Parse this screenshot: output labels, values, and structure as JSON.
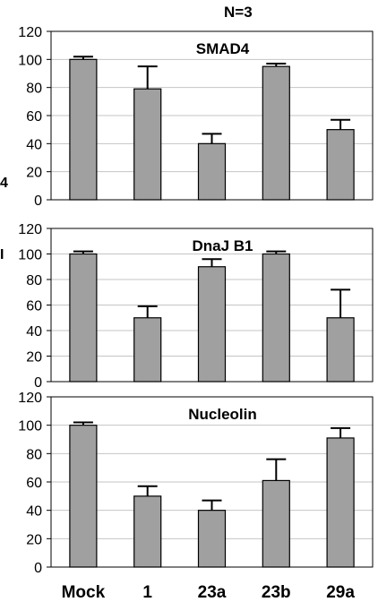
{
  "supertitle": "N=3",
  "left_edge_fragments": [
    "4",
    "I"
  ],
  "chart_data": [
    {
      "type": "bar",
      "title": "SMAD4",
      "categories": [
        "Mock",
        "1",
        "23a",
        "23b",
        "29a"
      ],
      "values": [
        100,
        79,
        40,
        95,
        50
      ],
      "error_upper": [
        2,
        16,
        7,
        2,
        7
      ],
      "ylim": [
        0,
        120
      ],
      "yticks": [
        0,
        20,
        40,
        60,
        80,
        100,
        120
      ],
      "grid": true,
      "bar_color": "#a0a0a0"
    },
    {
      "type": "bar",
      "title": "DnaJ B1",
      "categories": [
        "Mock",
        "1",
        "23a",
        "23b",
        "29a"
      ],
      "values": [
        100,
        50,
        90,
        100,
        50
      ],
      "error_upper": [
        2,
        9,
        6,
        2,
        22
      ],
      "ylim": [
        0,
        120
      ],
      "yticks": [
        0,
        20,
        40,
        60,
        80,
        100,
        120
      ],
      "grid": true,
      "bar_color": "#a0a0a0"
    },
    {
      "type": "bar",
      "title": "Nucleolin",
      "categories": [
        "Mock",
        "1",
        "23a",
        "23b",
        "29a"
      ],
      "values": [
        100,
        50,
        40,
        61,
        91
      ],
      "error_upper": [
        2,
        7,
        7,
        15,
        7
      ],
      "ylim": [
        0,
        120
      ],
      "yticks": [
        0,
        20,
        40,
        60,
        80,
        100,
        120
      ],
      "grid": true,
      "bar_color": "#a0a0a0"
    }
  ]
}
